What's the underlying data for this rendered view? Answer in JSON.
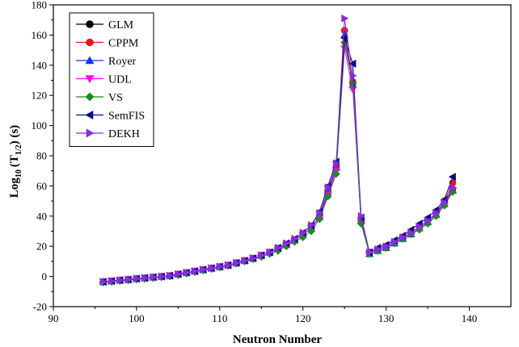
{
  "chart_data": {
    "type": "line",
    "xlabel": "Neutron Number",
    "ylabel_main": "Log",
    "ylabel_sub": "10",
    "ylabel_mid": "(T",
    "ylabel_sub2": "1/2",
    "ylabel_end": ") (s)",
    "xlim": [
      90,
      145
    ],
    "ylim": [
      -20,
      180
    ],
    "xticks": [
      90,
      100,
      110,
      120,
      130,
      140
    ],
    "yticks": [
      -20,
      0,
      20,
      40,
      60,
      80,
      100,
      120,
      140,
      160,
      180
    ],
    "grid": false,
    "legend_position": "top-left",
    "x": [
      96,
      97,
      98,
      99,
      100,
      101,
      102,
      103,
      104,
      105,
      106,
      107,
      108,
      109,
      110,
      111,
      112,
      113,
      114,
      115,
      116,
      117,
      118,
      119,
      120,
      121,
      122,
      123,
      124,
      125,
      126,
      127,
      128,
      129,
      130,
      131,
      132,
      133,
      134,
      135,
      136,
      137,
      138
    ],
    "series": [
      {
        "name": "GLM",
        "color": "#000000",
        "marker": "circle",
        "values": [
          -3.5,
          -3,
          -2.5,
          -2,
          -1.5,
          -1,
          -0.5,
          0,
          0.5,
          1.5,
          2.5,
          3.5,
          4.5,
          5.5,
          6.5,
          7.5,
          9,
          10.5,
          12,
          14,
          16,
          18.5,
          21,
          24,
          28,
          32,
          40,
          56,
          72,
          163,
          128,
          37,
          16,
          18,
          20,
          23,
          26,
          29,
          33,
          37,
          42,
          49,
          58
        ]
      },
      {
        "name": "CPPM",
        "color": "#e8141c",
        "marker": "circle",
        "values": [
          -3.5,
          -3,
          -2.5,
          -2,
          -1.5,
          -1,
          -0.5,
          0,
          0.5,
          1.5,
          2.5,
          3.5,
          4.5,
          5.5,
          6.5,
          7.5,
          9,
          10.5,
          12,
          14,
          16,
          18.5,
          21,
          24,
          28,
          32,
          40,
          57,
          73,
          163,
          129,
          38,
          16,
          18,
          20,
          23,
          26,
          29,
          33,
          37,
          42,
          50,
          62
        ]
      },
      {
        "name": "Royer",
        "color": "#1a33e6",
        "marker": "triangle-up",
        "values": [
          -3.5,
          -3,
          -2.5,
          -2,
          -1.5,
          -1,
          -0.5,
          0,
          0.5,
          1.5,
          2.5,
          3.5,
          4.5,
          5.5,
          6.5,
          7.5,
          9,
          10.5,
          12,
          14,
          16,
          18.5,
          21,
          24,
          28,
          32,
          40,
          56,
          72,
          160,
          127,
          37,
          15,
          17,
          19,
          22,
          25,
          28,
          32,
          36,
          41,
          48,
          57
        ]
      },
      {
        "name": "UDL",
        "color": "#ff00ff",
        "marker": "triangle-down",
        "values": [
          -3.5,
          -3,
          -2.5,
          -2,
          -1.5,
          -1,
          -0.5,
          0,
          0.5,
          1.5,
          2.5,
          3.5,
          4.5,
          5.5,
          6.5,
          7.5,
          9,
          10.5,
          12,
          14,
          16,
          18.5,
          21,
          24,
          28,
          32,
          39,
          54,
          70,
          151,
          124,
          36,
          15,
          17,
          19,
          22,
          25,
          28,
          32,
          36,
          41,
          48,
          57
        ]
      },
      {
        "name": "VS",
        "color": "#1f8a1f",
        "marker": "diamond",
        "values": [
          -4,
          -3.5,
          -3,
          -2.5,
          -2,
          -1.5,
          -1,
          -0.5,
          0,
          1,
          2,
          3,
          4,
          5,
          6,
          7,
          8.5,
          10,
          11.5,
          13,
          15,
          17,
          20,
          23,
          26,
          30,
          38,
          53,
          68,
          155,
          128,
          35,
          15,
          17,
          19,
          22,
          25,
          28,
          31,
          35,
          40,
          47,
          56
        ]
      },
      {
        "name": "SemFIS",
        "color": "#0b0b80",
        "marker": "triangle-left",
        "values": [
          -3.5,
          -3,
          -2.5,
          -2,
          -1.5,
          -1,
          -0.5,
          0,
          0.5,
          1.5,
          2.5,
          3.5,
          4.5,
          5.5,
          6.5,
          7.5,
          9,
          10.5,
          12,
          14,
          16,
          19,
          22,
          25,
          29,
          34,
          43,
          60,
          76,
          158,
          141,
          39,
          16,
          19,
          21,
          24,
          27,
          31,
          35,
          39,
          44,
          51,
          66
        ]
      },
      {
        "name": "DEKH",
        "color": "#8a2be2",
        "marker": "triangle-right",
        "values": [
          -3.5,
          -3,
          -2.5,
          -2,
          -1.5,
          -1,
          -0.5,
          0,
          0.5,
          1.5,
          2.5,
          3.5,
          4.5,
          5.5,
          6.5,
          7.5,
          9,
          10.5,
          12,
          14,
          16,
          19,
          22,
          25,
          29,
          34,
          42,
          59,
          75,
          171,
          133,
          40,
          16,
          18,
          20,
          23,
          26,
          29,
          33,
          37,
          42,
          49,
          59
        ]
      }
    ]
  }
}
